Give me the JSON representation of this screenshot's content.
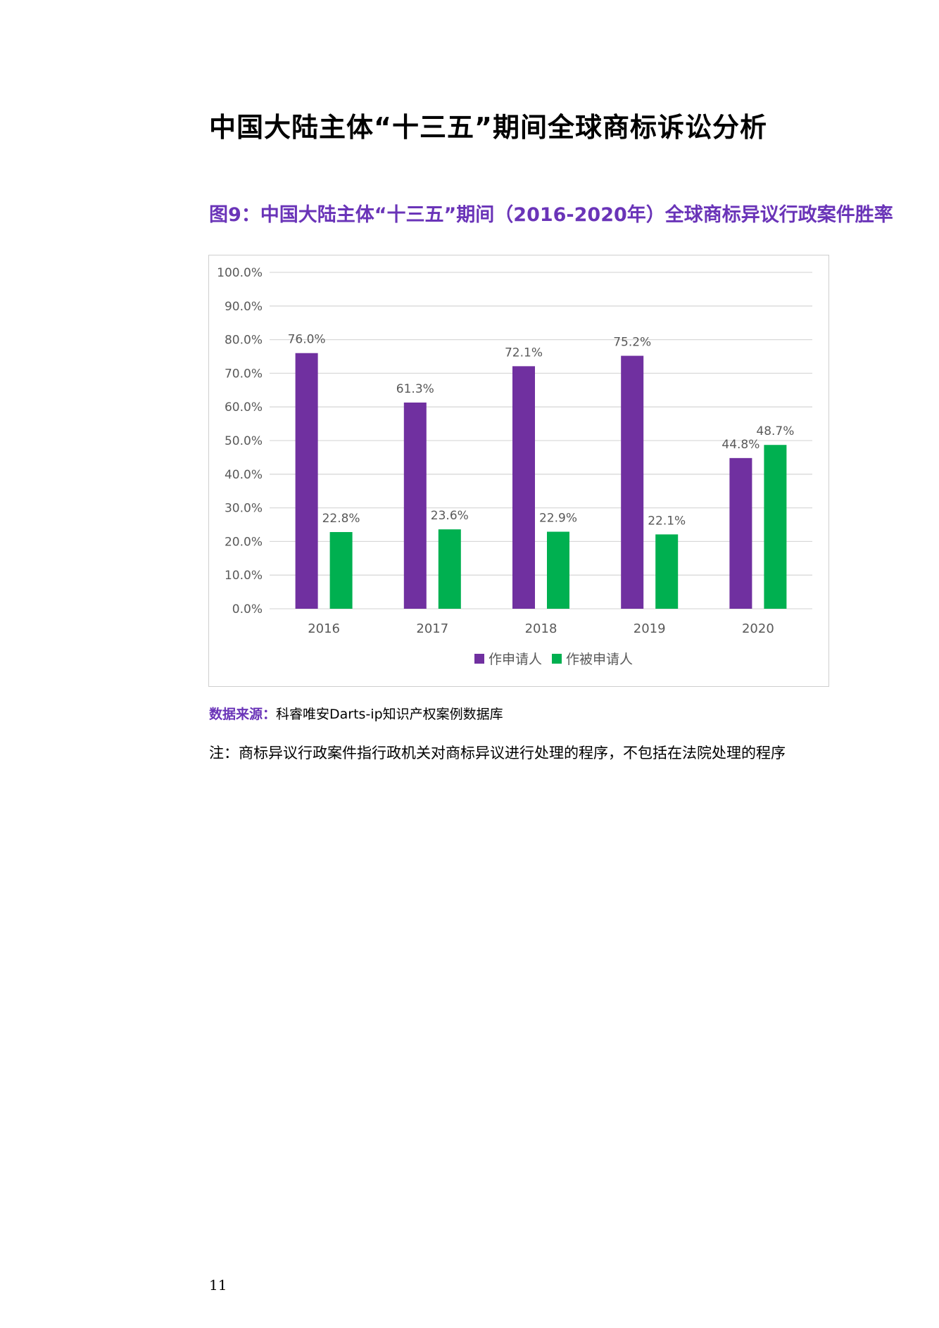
{
  "page": {
    "heading": "中国大陆主体“十三五”期间全球商标诉讼分析",
    "figure_title": "图9：中国大陆主体“十三五”期间（2016-2020年）全球商标异议行政案件胜率",
    "source_label": "数据来源：",
    "source_text": "科睿唯安Darts-ip知识产权案例数据库",
    "note": "注：商标异议行政案件指行政机关对商标异议进行处理的程序，不包括在法院处理的程序",
    "page_number": "11"
  },
  "chart_data": {
    "type": "bar",
    "categories": [
      "2016",
      "2017",
      "2018",
      "2019",
      "2020"
    ],
    "series": [
      {
        "name": "作申请人",
        "color": "#7030a0",
        "values": [
          76.0,
          61.3,
          72.1,
          75.2,
          44.8
        ],
        "labels": [
          "76.0%",
          "61.3%",
          "72.1%",
          "75.2%",
          "44.8%"
        ]
      },
      {
        "name": "作被申请人",
        "color": "#00b050",
        "values": [
          22.8,
          23.6,
          22.9,
          22.1,
          48.7
        ],
        "labels": [
          "22.8%",
          "23.6%",
          "22.9%",
          "22.1%",
          "48.7%"
        ]
      }
    ],
    "ylim": [
      0,
      100
    ],
    "yticks": [
      0,
      10,
      20,
      30,
      40,
      50,
      60,
      70,
      80,
      90,
      100
    ],
    "ytick_labels": [
      "0.0%",
      "10.0%",
      "20.0%",
      "30.0%",
      "40.0%",
      "50.0%",
      "60.0%",
      "70.0%",
      "80.0%",
      "90.0%",
      "100.0%"
    ],
    "grid": true,
    "legend": "bottom-center",
    "gridline_color": "#d9d9d9",
    "text_color": "#595959"
  }
}
